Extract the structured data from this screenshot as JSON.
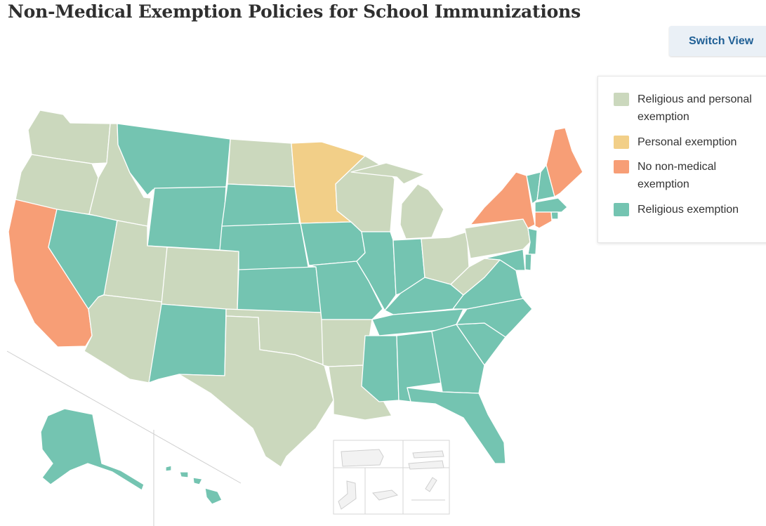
{
  "title": "Non-Medical Exemption Policies for School Immunizations",
  "switch_view_label": "Switch View",
  "colors": {
    "religious_and_personal": "#cbd8bd",
    "personal": "#f2cf88",
    "no_non_medical": "#f79e76",
    "religious": "#74c4b1",
    "territory": "#f2f2f2"
  },
  "legend": [
    {
      "key": "religious_and_personal",
      "label": "Religious and personal exemption",
      "color": "#cbd8bd"
    },
    {
      "key": "personal",
      "label": "Personal exemption",
      "color": "#f2cf88"
    },
    {
      "key": "no_non_medical",
      "label": "No non-medical exemption",
      "color": "#f79e76"
    },
    {
      "key": "religious",
      "label": "Religious exemption",
      "color": "#74c4b1"
    }
  ],
  "states": [
    {
      "id": "WA",
      "category": "religious_and_personal"
    },
    {
      "id": "OR",
      "category": "religious_and_personal"
    },
    {
      "id": "CA",
      "category": "no_non_medical"
    },
    {
      "id": "NV",
      "category": "religious"
    },
    {
      "id": "ID",
      "category": "religious_and_personal"
    },
    {
      "id": "MT",
      "category": "religious"
    },
    {
      "id": "WY",
      "category": "religious"
    },
    {
      "id": "UT",
      "category": "religious_and_personal"
    },
    {
      "id": "AZ",
      "category": "religious_and_personal"
    },
    {
      "id": "CO",
      "category": "religious_and_personal"
    },
    {
      "id": "NM",
      "category": "religious"
    },
    {
      "id": "ND",
      "category": "religious_and_personal"
    },
    {
      "id": "SD",
      "category": "religious"
    },
    {
      "id": "NE",
      "category": "religious"
    },
    {
      "id": "KS",
      "category": "religious"
    },
    {
      "id": "OK",
      "category": "religious_and_personal"
    },
    {
      "id": "TX",
      "category": "religious_and_personal"
    },
    {
      "id": "MN",
      "category": "personal"
    },
    {
      "id": "IA",
      "category": "religious"
    },
    {
      "id": "MO",
      "category": "religious"
    },
    {
      "id": "AR",
      "category": "religious_and_personal"
    },
    {
      "id": "LA",
      "category": "religious_and_personal"
    },
    {
      "id": "WI",
      "category": "religious_and_personal"
    },
    {
      "id": "IL",
      "category": "religious"
    },
    {
      "id": "MI",
      "category": "religious_and_personal"
    },
    {
      "id": "IN",
      "category": "religious"
    },
    {
      "id": "OH",
      "category": "religious_and_personal"
    },
    {
      "id": "KY",
      "category": "religious"
    },
    {
      "id": "TN",
      "category": "religious"
    },
    {
      "id": "MS",
      "category": "religious"
    },
    {
      "id": "AL",
      "category": "religious"
    },
    {
      "id": "GA",
      "category": "religious"
    },
    {
      "id": "FL",
      "category": "religious"
    },
    {
      "id": "SC",
      "category": "religious"
    },
    {
      "id": "NC",
      "category": "religious"
    },
    {
      "id": "VA",
      "category": "religious"
    },
    {
      "id": "WV",
      "category": "religious_and_personal"
    },
    {
      "id": "PA",
      "category": "religious_and_personal"
    },
    {
      "id": "NY",
      "category": "no_non_medical"
    },
    {
      "id": "VT",
      "category": "religious"
    },
    {
      "id": "NH",
      "category": "religious"
    },
    {
      "id": "ME",
      "category": "no_non_medical"
    },
    {
      "id": "MA",
      "category": "religious"
    },
    {
      "id": "RI",
      "category": "religious"
    },
    {
      "id": "CT",
      "category": "no_non_medical"
    },
    {
      "id": "NJ",
      "category": "religious"
    },
    {
      "id": "DE",
      "category": "religious"
    },
    {
      "id": "MD",
      "category": "religious"
    },
    {
      "id": "AK",
      "category": "religious"
    },
    {
      "id": "HI",
      "category": "religious"
    }
  ]
}
